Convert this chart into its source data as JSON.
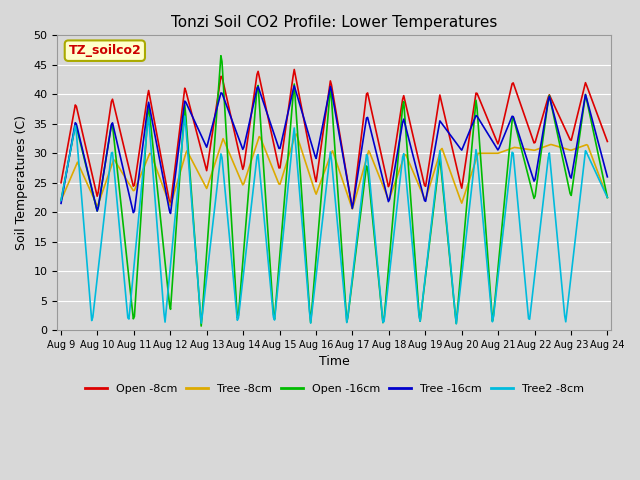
{
  "title": "Tonzi Soil CO2 Profile: Lower Temperatures",
  "xlabel": "Time",
  "ylabel": "Soil Temperatures (C)",
  "ylim": [
    0,
    50
  ],
  "background_color": "#d8d8d8",
  "plot_bg_color": "#d8d8d8",
  "label_box_text": "TZ_soilco2",
  "label_box_facecolor": "#ffffcc",
  "label_box_edgecolor": "#aaaa00",
  "label_box_textcolor": "#cc0000",
  "x_tick_labels": [
    "Aug 9",
    "Aug 10",
    "Aug 11",
    "Aug 12",
    "Aug 13",
    "Aug 14",
    "Aug 15",
    "Aug 16",
    "Aug 17",
    "Aug 18",
    "Aug 19",
    "Aug 20",
    "Aug 21",
    "Aug 22",
    "Aug 23",
    "Aug 24"
  ],
  "legend": [
    {
      "label": "Open -8cm",
      "color": "#dd0000"
    },
    {
      "label": "Tree -8cm",
      "color": "#ddaa00"
    },
    {
      "label": "Open -16cm",
      "color": "#00bb00"
    },
    {
      "label": "Tree -16cm",
      "color": "#0000cc"
    },
    {
      "label": "Tree2 -8cm",
      "color": "#00bbdd"
    }
  ],
  "series": {
    "open8": {
      "color": "#dd0000",
      "data": [
        [
          0.0,
          25.0
        ],
        [
          0.4,
          38.5
        ],
        [
          1.0,
          22.5
        ],
        [
          1.4,
          39.5
        ],
        [
          2.0,
          24.0
        ],
        [
          2.4,
          40.8
        ],
        [
          3.0,
          21.0
        ],
        [
          3.4,
          41.2
        ],
        [
          4.0,
          27.0
        ],
        [
          4.4,
          43.5
        ],
        [
          5.0,
          27.0
        ],
        [
          5.4,
          44.2
        ],
        [
          6.0,
          27.0
        ],
        [
          6.4,
          44.3
        ],
        [
          7.0,
          25.0
        ],
        [
          7.4,
          42.5
        ],
        [
          8.0,
          20.5
        ],
        [
          8.4,
          40.7
        ],
        [
          9.0,
          24.0
        ],
        [
          9.4,
          40.0
        ],
        [
          10.0,
          24.0
        ],
        [
          10.4,
          39.9
        ],
        [
          11.0,
          24.0
        ],
        [
          11.4,
          40.5
        ],
        [
          12.0,
          31.5
        ],
        [
          12.4,
          42.2
        ],
        [
          13.0,
          31.5
        ],
        [
          13.4,
          40.0
        ],
        [
          14.0,
          32.0
        ],
        [
          14.4,
          42.0
        ],
        [
          15.0,
          32.0
        ]
      ]
    },
    "tree8": {
      "color": "#ddaa00",
      "data": [
        [
          0.0,
          22.0
        ],
        [
          0.45,
          28.5
        ],
        [
          1.0,
          21.0
        ],
        [
          1.45,
          29.0
        ],
        [
          2.0,
          23.5
        ],
        [
          2.45,
          30.2
        ],
        [
          3.0,
          21.0
        ],
        [
          3.45,
          30.5
        ],
        [
          4.0,
          24.0
        ],
        [
          4.45,
          32.5
        ],
        [
          5.0,
          24.5
        ],
        [
          5.45,
          33.0
        ],
        [
          6.0,
          24.5
        ],
        [
          6.45,
          33.5
        ],
        [
          7.0,
          23.0
        ],
        [
          7.45,
          30.5
        ],
        [
          8.0,
          20.5
        ],
        [
          8.45,
          30.5
        ],
        [
          9.0,
          22.0
        ],
        [
          9.45,
          30.0
        ],
        [
          10.0,
          22.0
        ],
        [
          10.45,
          31.0
        ],
        [
          11.0,
          21.5
        ],
        [
          11.45,
          30.0
        ],
        [
          12.0,
          30.0
        ],
        [
          12.45,
          31.0
        ],
        [
          13.0,
          30.5
        ],
        [
          13.45,
          31.5
        ],
        [
          14.0,
          30.5
        ],
        [
          14.45,
          31.5
        ],
        [
          15.0,
          22.5
        ]
      ]
    },
    "open16": {
      "color": "#00bb00",
      "data": [
        [
          0.0,
          22.0
        ],
        [
          0.4,
          35.0
        ],
        [
          1.0,
          20.0
        ],
        [
          1.4,
          35.5
        ],
        [
          2.0,
          1.0
        ],
        [
          2.4,
          38.5
        ],
        [
          3.0,
          3.0
        ],
        [
          3.4,
          38.5
        ],
        [
          3.85,
          0.5
        ],
        [
          4.4,
          47.5
        ],
        [
          4.85,
          1.0
        ],
        [
          5.4,
          42.5
        ],
        [
          5.85,
          1.0
        ],
        [
          6.4,
          42.0
        ],
        [
          6.85,
          1.0
        ],
        [
          7.4,
          41.5
        ],
        [
          7.85,
          1.0
        ],
        [
          8.4,
          28.5
        ],
        [
          8.85,
          0.5
        ],
        [
          9.4,
          39.5
        ],
        [
          9.85,
          1.0
        ],
        [
          10.4,
          29.5
        ],
        [
          10.85,
          1.0
        ],
        [
          11.4,
          39.5
        ],
        [
          11.85,
          1.0
        ],
        [
          12.4,
          36.5
        ],
        [
          13.0,
          22.0
        ],
        [
          13.4,
          40.0
        ],
        [
          14.0,
          22.5
        ],
        [
          14.4,
          40.0
        ],
        [
          15.0,
          22.5
        ]
      ]
    },
    "tree16": {
      "color": "#0000cc",
      "data": [
        [
          0.0,
          21.5
        ],
        [
          0.4,
          35.5
        ],
        [
          1.0,
          20.0
        ],
        [
          1.4,
          35.5
        ],
        [
          2.0,
          19.5
        ],
        [
          2.4,
          38.8
        ],
        [
          3.0,
          19.5
        ],
        [
          3.4,
          39.0
        ],
        [
          4.0,
          31.0
        ],
        [
          4.4,
          40.5
        ],
        [
          5.0,
          30.5
        ],
        [
          5.4,
          41.5
        ],
        [
          6.0,
          30.5
        ],
        [
          6.4,
          41.5
        ],
        [
          7.0,
          29.0
        ],
        [
          7.4,
          41.5
        ],
        [
          8.0,
          20.5
        ],
        [
          8.4,
          36.5
        ],
        [
          9.0,
          21.5
        ],
        [
          9.4,
          36.0
        ],
        [
          10.0,
          21.5
        ],
        [
          10.4,
          35.5
        ],
        [
          11.0,
          30.5
        ],
        [
          11.4,
          36.5
        ],
        [
          12.0,
          30.5
        ],
        [
          12.4,
          36.5
        ],
        [
          13.0,
          25.0
        ],
        [
          13.4,
          39.8
        ],
        [
          14.0,
          25.5
        ],
        [
          14.4,
          40.0
        ],
        [
          15.0,
          26.0
        ]
      ]
    },
    "tree2_8": {
      "color": "#00bbdd",
      "data": [
        [
          0.0,
          22.0
        ],
        [
          0.4,
          35.0
        ],
        [
          0.85,
          1.0
        ],
        [
          1.4,
          31.0
        ],
        [
          1.85,
          1.0
        ],
        [
          2.4,
          36.5
        ],
        [
          2.85,
          1.0
        ],
        [
          3.4,
          36.5
        ],
        [
          3.85,
          1.0
        ],
        [
          4.4,
          30.5
        ],
        [
          4.85,
          1.0
        ],
        [
          5.4,
          30.5
        ],
        [
          5.85,
          1.0
        ],
        [
          6.4,
          34.5
        ],
        [
          6.85,
          1.0
        ],
        [
          7.4,
          30.5
        ],
        [
          7.85,
          1.0
        ],
        [
          8.4,
          30.5
        ],
        [
          8.85,
          0.5
        ],
        [
          9.4,
          30.5
        ],
        [
          9.85,
          1.0
        ],
        [
          10.4,
          30.5
        ],
        [
          10.85,
          1.0
        ],
        [
          11.4,
          31.0
        ],
        [
          11.85,
          1.0
        ],
        [
          12.4,
          31.0
        ],
        [
          12.85,
          1.0
        ],
        [
          13.4,
          30.5
        ],
        [
          13.85,
          1.0
        ],
        [
          14.4,
          30.5
        ],
        [
          15.0,
          22.5
        ]
      ]
    }
  }
}
